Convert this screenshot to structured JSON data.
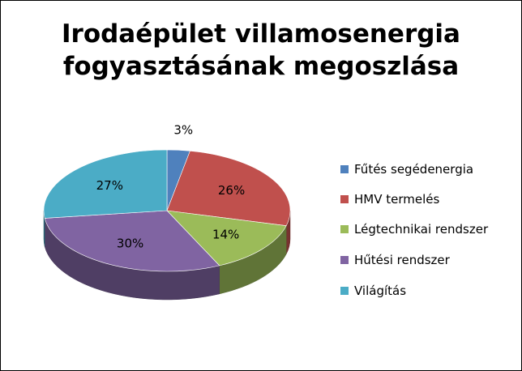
{
  "chart_data": {
    "type": "pie",
    "title": "Irodaépület villamosenergia fogyasztásának megoszlása",
    "title_lines": [
      "Irodaépület villamosenergia",
      "fogyasztásának megoszlása"
    ],
    "style": "3d",
    "legend_position": "right",
    "categories": [
      "Fűtés segédenergia",
      "HMV termelés",
      "Légtechnikai rendszer",
      "Hűtési rendszer",
      "Világítás"
    ],
    "values": [
      3,
      26,
      14,
      30,
      27
    ],
    "labels": [
      "3%",
      "26%",
      "14%",
      "30%",
      "27%"
    ],
    "colors": [
      "#4F81BD",
      "#C0504D",
      "#9BBB59",
      "#8064A2",
      "#4BACC6"
    ]
  }
}
